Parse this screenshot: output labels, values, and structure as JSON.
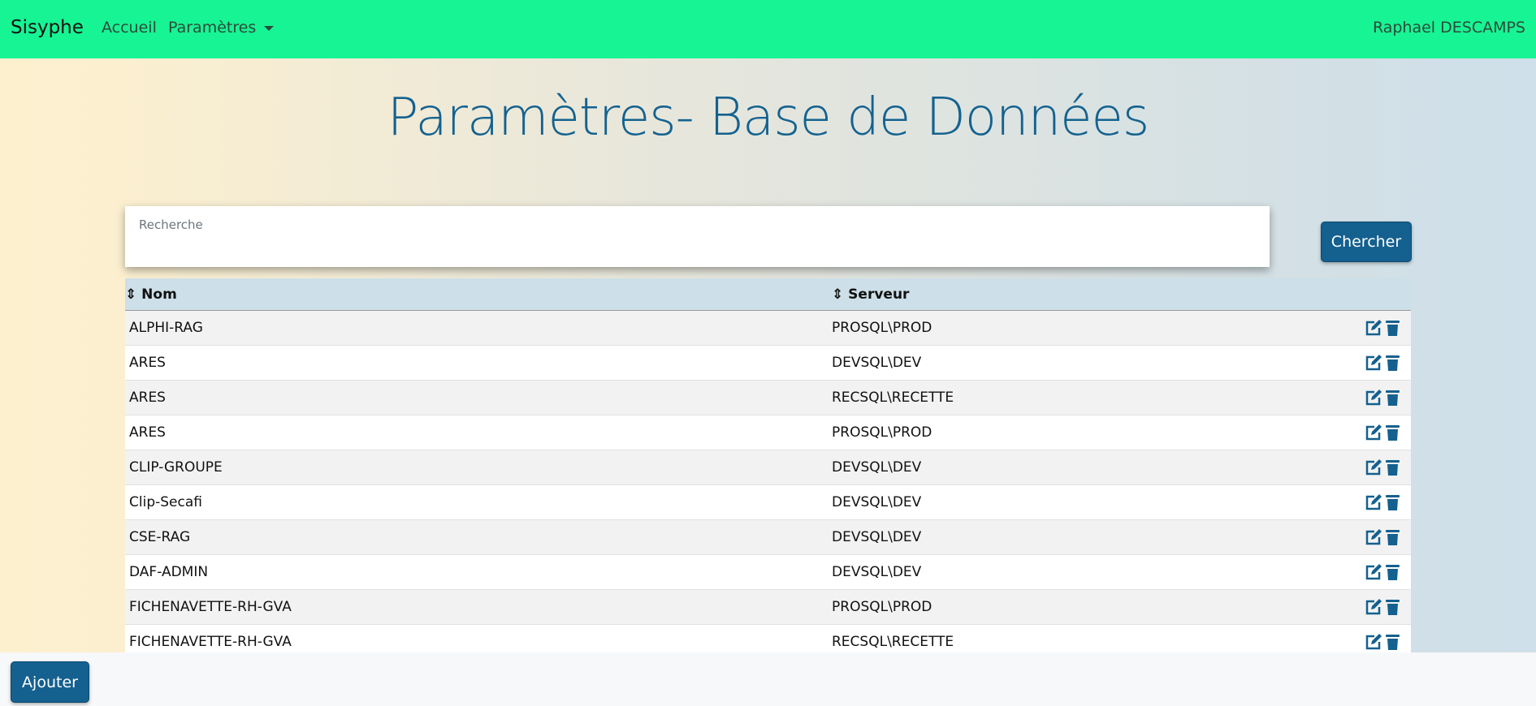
{
  "navbar": {
    "brand": "Sisyphe",
    "links": [
      "Accueil",
      "Paramètres"
    ],
    "user": "Raphael DESCAMPS"
  },
  "header": {
    "title": "Paramètres- Base de Données"
  },
  "search": {
    "placeholder": "Recherche",
    "button": "Chercher"
  },
  "table": {
    "columns": [
      "Nom",
      "Serveur"
    ],
    "rows": [
      [
        "ALPHI-RAG",
        "PROSQL\\PROD"
      ],
      [
        "ARES",
        "DEVSQL\\DEV"
      ],
      [
        "ARES",
        "RECSQL\\RECETTE"
      ],
      [
        "ARES",
        "PROSQL\\PROD"
      ],
      [
        "CLIP-GROUPE",
        "DEVSQL\\DEV"
      ],
      [
        "Clip-Secafi",
        "DEVSQL\\DEV"
      ],
      [
        "CSE-RAG",
        "DEVSQL\\DEV"
      ],
      [
        "DAF-ADMIN",
        "DEVSQL\\DEV"
      ],
      [
        "FICHENAVETTE-RH-GVA",
        "PROSQL\\PROD"
      ],
      [
        "FICHENAVETTE-RH-GVA",
        "RECSQL\\RECETTE"
      ]
    ]
  },
  "footer": {
    "button": "Ajouter"
  }
}
